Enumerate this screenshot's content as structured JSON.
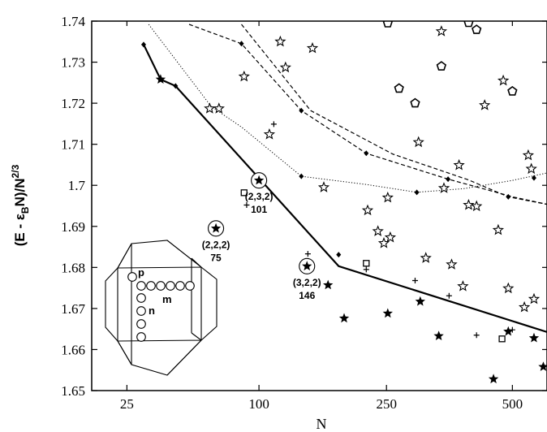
{
  "chart_data": {
    "type": "scatter",
    "xlabel": "N",
    "ylabel": "(E - ε_B N)/N^{2/3}",
    "ylabel_parts": {
      "a": "(E - ε",
      "b": "B",
      "c": "N)/N",
      "d": "2/3"
    },
    "x_scale": "N^(1/3)",
    "xlim": [
      15,
      590
    ],
    "ylim": [
      1.65,
      1.74
    ],
    "xticks": [
      25,
      100,
      250,
      500
    ],
    "xtick_labels": [
      "25",
      "100",
      "250",
      "500"
    ],
    "yticks": [
      1.65,
      1.66,
      1.67,
      1.68,
      1.69,
      1.7,
      1.71,
      1.72,
      1.73,
      1.74
    ],
    "ytick_labels": [
      "1.65",
      "1.66",
      "1.67",
      "1.68",
      "1.69",
      "1.7",
      "1.71",
      "1.72",
      "1.73",
      "1.74"
    ],
    "series": [
      {
        "type": "line",
        "style": "solid",
        "points": [
          [
            31,
            1.7343
          ],
          [
            38,
            1.7258
          ],
          [
            45,
            1.7242
          ],
          [
            183,
            1.6803
          ],
          [
            596,
            1.6641
          ]
        ]
      },
      {
        "type": "line",
        "style": "dotted",
        "points": [
          [
            33,
            1.7392
          ],
          [
            65,
            1.7192
          ],
          [
            86,
            1.7142
          ],
          [
            140,
            1.7022
          ],
          [
            220,
            1.7002
          ],
          [
            300,
            1.6983
          ],
          [
            390,
            1.6992
          ],
          [
            500,
            1.7012
          ],
          [
            600,
            1.7032
          ]
        ]
      },
      {
        "type": "line",
        "style": "dashed-upper",
        "points": [
          [
            86,
            1.7392
          ],
          [
            150,
            1.7182
          ],
          [
            260,
            1.7076
          ],
          [
            400,
            1.7013
          ],
          [
            490,
            1.6972
          ],
          [
            600,
            1.6952
          ]
        ]
      },
      {
        "type": "line",
        "style": "dashed-lower",
        "points": [
          [
            52,
            1.7392
          ],
          [
            86,
            1.7345
          ],
          [
            140,
            1.7182
          ],
          [
            220,
            1.7078
          ],
          [
            358,
            1.7015
          ],
          [
            505,
            1.6971
          ],
          [
            600,
            1.6952
          ]
        ]
      },
      {
        "type": "diamond",
        "points": [
          [
            31,
            1.7343
          ],
          [
            45,
            1.7242
          ],
          [
            86,
            1.7345
          ],
          [
            140,
            1.7182
          ],
          [
            140,
            1.7022
          ],
          [
            183,
            1.6831
          ],
          [
            220,
            1.7078
          ],
          [
            300,
            1.6983
          ],
          [
            358,
            1.7015
          ],
          [
            490,
            1.6972
          ],
          [
            555,
            1.7018
          ],
          [
            596,
            1.6641
          ]
        ]
      },
      {
        "type": "filled-star",
        "points": [
          [
            38,
            1.7258
          ],
          [
            170,
            1.6757
          ],
          [
            190,
            1.6676
          ],
          [
            252,
            1.6688
          ],
          [
            306,
            1.6717
          ],
          [
            340,
            1.6633
          ],
          [
            455,
            1.6528
          ],
          [
            490,
            1.6644
          ],
          [
            555,
            1.6628
          ],
          [
            580,
            1.6558
          ]
        ]
      },
      {
        "type": "open-star",
        "points": [
          [
            64,
            1.7187
          ],
          [
            70,
            1.7187
          ],
          [
            88,
            1.7265
          ],
          [
            109,
            1.7124
          ],
          [
            119,
            1.735
          ],
          [
            124,
            1.7287
          ],
          [
            152,
            1.7334
          ],
          [
            165,
            1.6995
          ],
          [
            222,
            1.6939
          ],
          [
            237,
            1.6888
          ],
          [
            246,
            1.6859
          ],
          [
            252,
            1.697
          ],
          [
            256,
            1.6873
          ],
          [
            303,
            1.7105
          ],
          [
            316,
            1.6823
          ],
          [
            345,
            1.7375
          ],
          [
            350,
            1.6993
          ],
          [
            365,
            1.6807
          ],
          [
            380,
            1.7049
          ],
          [
            388,
            1.6754
          ],
          [
            400,
            1.6952
          ],
          [
            417,
            1.6949
          ],
          [
            435,
            1.7195
          ],
          [
            466,
            1.6891
          ],
          [
            478,
            1.7255
          ],
          [
            490,
            1.6749
          ],
          [
            530,
            1.6703
          ],
          [
            540,
            1.7073
          ],
          [
            548,
            1.704
          ],
          [
            555,
            1.6723
          ]
        ]
      },
      {
        "type": "pentagon",
        "points": [
          [
            252,
            1.7395
          ],
          [
            270,
            1.7236
          ],
          [
            297,
            1.72
          ],
          [
            345,
            1.729
          ],
          [
            400,
            1.7396
          ],
          [
            417,
            1.7379
          ],
          [
            500,
            1.7229
          ]
        ]
      },
      {
        "type": "plus",
        "points": [
          [
            90,
            1.6952
          ],
          [
            113,
            1.7149
          ],
          [
            147,
            1.6833
          ],
          [
            220,
            1.6795
          ],
          [
            297,
            1.6768
          ],
          [
            360,
            1.6731
          ],
          [
            417,
            1.6635
          ],
          [
            500,
            1.6648
          ]
        ]
      },
      {
        "type": "square",
        "points": [
          [
            88,
            1.6982
          ],
          [
            220,
            1.681
          ],
          [
            475,
            1.6626
          ]
        ]
      }
    ],
    "highlighted": [
      {
        "x": 68,
        "y": 1.6895,
        "label": "(2,2,2)",
        "n": "75"
      },
      {
        "x": 100,
        "y": 1.7012,
        "label": "(2,3,2)",
        "n": "101"
      },
      {
        "x": 146,
        "y": 1.6803,
        "label": "(3,2,2)",
        "n": "146"
      }
    ],
    "inset": {
      "labels": [
        "p",
        "m",
        "n"
      ]
    }
  }
}
